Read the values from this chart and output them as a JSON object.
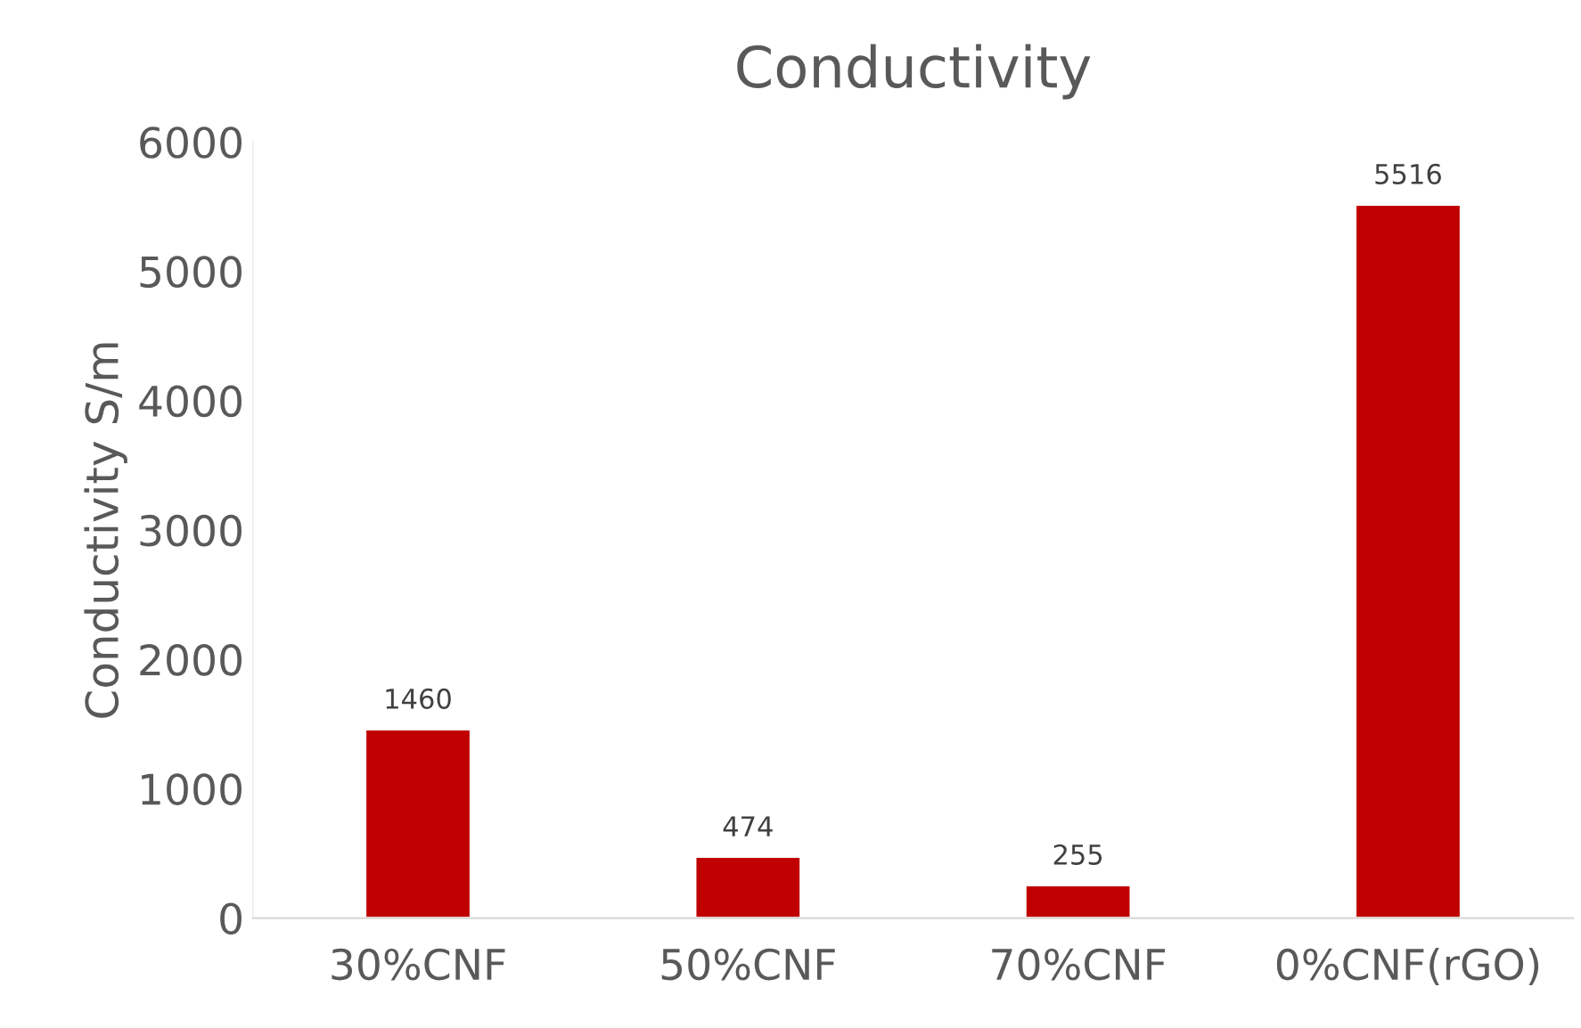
{
  "chart_data": {
    "type": "bar",
    "title": "Conductivity",
    "ylabel": "Conductivity S/m",
    "categories": [
      "30%CNF",
      "50%CNF",
      "70%CNF",
      "0%CNF(rGO)"
    ],
    "values": [
      1460,
      474,
      255,
      5516
    ],
    "color": "#c00000",
    "ylim": [
      0,
      6000
    ],
    "yticks": [
      0,
      1000,
      2000,
      3000,
      4000,
      5000,
      6000
    ],
    "grid": false,
    "data_labels": true
  }
}
